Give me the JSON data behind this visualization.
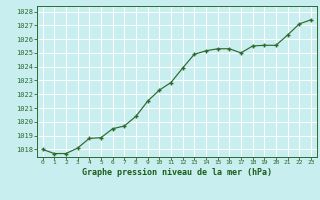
{
  "x": [
    0,
    1,
    2,
    3,
    4,
    5,
    6,
    7,
    8,
    9,
    10,
    11,
    12,
    13,
    14,
    15,
    16,
    17,
    18,
    19,
    20,
    21,
    22,
    23
  ],
  "y": [
    1018.0,
    1017.7,
    1017.7,
    1018.1,
    1018.8,
    1018.85,
    1019.5,
    1019.7,
    1020.4,
    1021.5,
    1022.3,
    1022.85,
    1023.9,
    1024.9,
    1025.15,
    1025.3,
    1025.3,
    1025.0,
    1025.5,
    1025.55,
    1025.55,
    1026.3,
    1027.1,
    1027.4
  ],
  "line_color": "#2d6a2d",
  "marker_color": "#2d6a2d",
  "bg_color": "#c8eef0",
  "grid_color": "#ffffff",
  "xlabel": "Graphe pression niveau de la mer (hPa)",
  "xlabel_color": "#1a5e1a",
  "tick_color": "#2d6a2d",
  "ylim_min": 1017.45,
  "ylim_max": 1028.4,
  "xlim_min": -0.5,
  "xlim_max": 23.5,
  "yticks": [
    1018,
    1019,
    1020,
    1021,
    1022,
    1023,
    1024,
    1025,
    1026,
    1027,
    1028
  ],
  "xticks": [
    0,
    1,
    2,
    3,
    4,
    5,
    6,
    7,
    8,
    9,
    10,
    11,
    12,
    13,
    14,
    15,
    16,
    17,
    18,
    19,
    20,
    21,
    22,
    23
  ]
}
